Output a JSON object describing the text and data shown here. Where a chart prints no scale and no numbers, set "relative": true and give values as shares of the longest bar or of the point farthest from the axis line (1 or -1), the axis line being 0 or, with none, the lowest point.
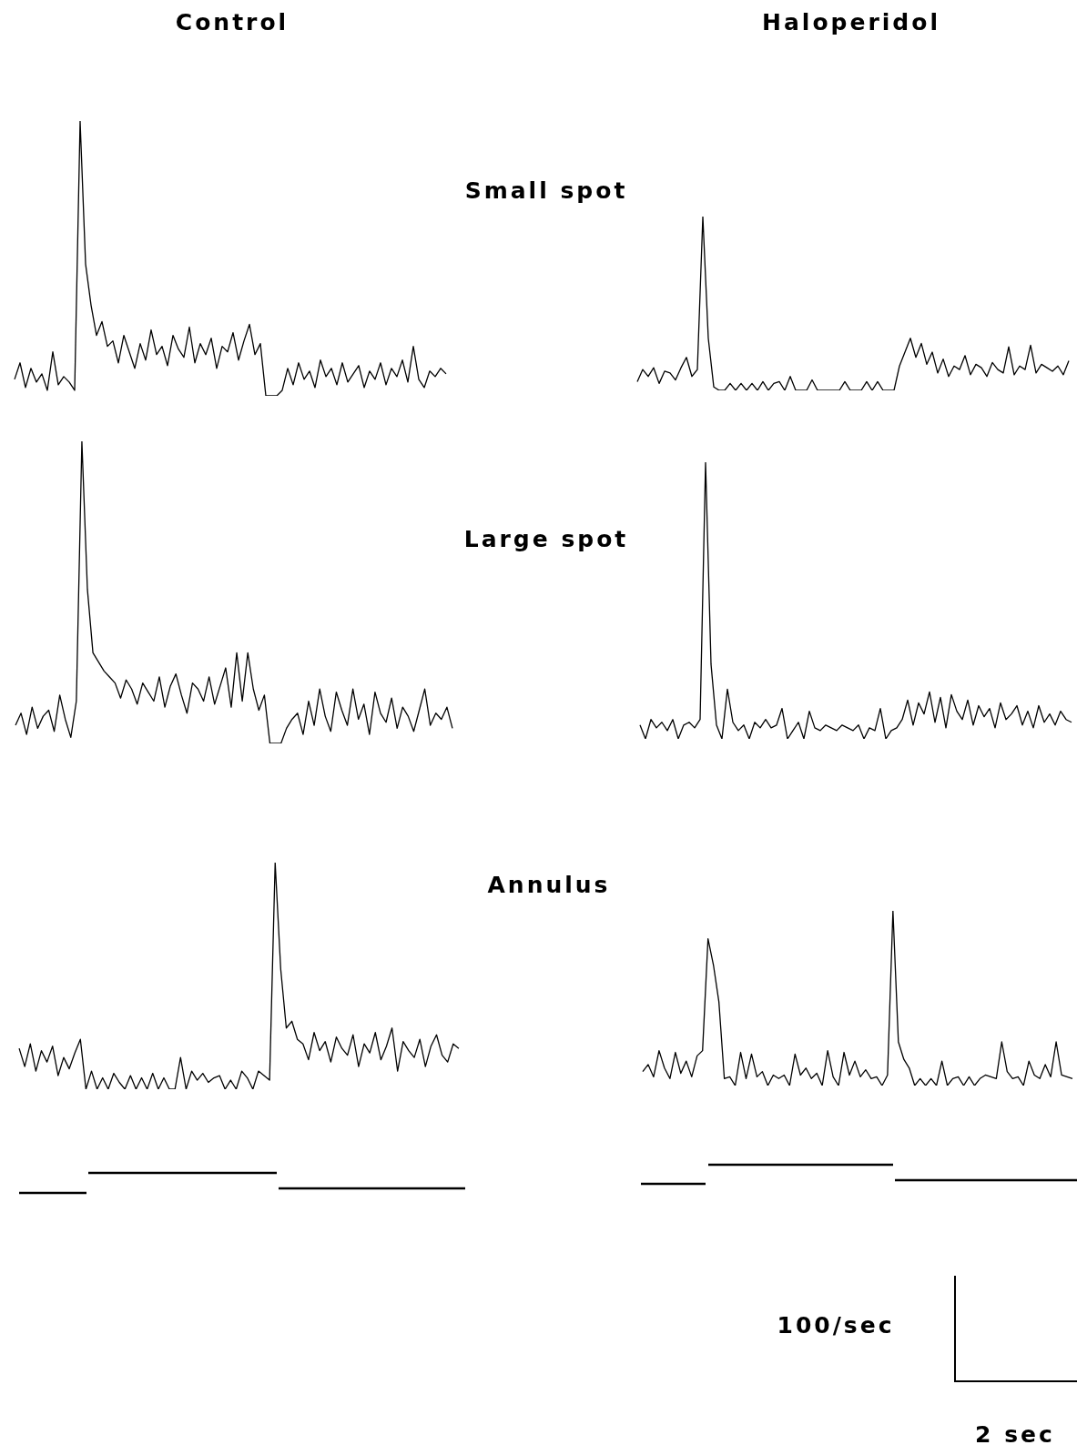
{
  "chart_data": [
    {
      "type": "line",
      "title": "Control",
      "annotations": [
        "Small spot"
      ],
      "relative": true,
      "color": "#000000",
      "categories": [
        null,
        null,
        null,
        null,
        null,
        null,
        null,
        null,
        null,
        null,
        null,
        null,
        null,
        null,
        null,
        null,
        null,
        null,
        null,
        null,
        null,
        null,
        null,
        null,
        null,
        null,
        null,
        null,
        null,
        null,
        null,
        null,
        null,
        null,
        null,
        null,
        null,
        null,
        null,
        null,
        null,
        null,
        null,
        null,
        null,
        null,
        null,
        null,
        null,
        null,
        null,
        null,
        null,
        null,
        null,
        null,
        null,
        null,
        null,
        null,
        null,
        null,
        null,
        null,
        null,
        null,
        null,
        null,
        null,
        null,
        null,
        null,
        null,
        null,
        null,
        null,
        null,
        null,
        null,
        null
      ],
      "values": [
        0.06,
        0.12,
        0.03,
        0.1,
        0.05,
        0.08,
        0.02,
        0.16,
        0.04,
        0.07,
        0.05,
        0.02,
        1.0,
        0.48,
        0.33,
        0.22,
        0.27,
        0.18,
        0.2,
        0.12,
        0.22,
        0.16,
        0.1,
        0.19,
        0.13,
        0.24,
        0.15,
        0.18,
        0.11,
        0.22,
        0.17,
        0.14,
        0.25,
        0.12,
        0.19,
        0.15,
        0.21,
        0.1,
        0.18,
        0.16,
        0.23,
        0.13,
        0.2,
        0.26,
        0.15,
        0.19,
        0,
        0,
        0,
        0.02,
        0.1,
        0.04,
        0.12,
        0.06,
        0.09,
        0.03,
        0.13,
        0.07,
        0.1,
        0.04,
        0.12,
        0.05,
        0.08,
        0.11,
        0.03,
        0.09,
        0.06,
        0.12,
        0.04,
        0.1,
        0.07,
        0.13,
        0.05,
        0.18,
        0.06,
        0.03,
        0.09,
        0.07,
        0.1,
        0.08
      ]
    },
    {
      "type": "line",
      "title": "Haloperidol",
      "relative": true,
      "color": "#000000",
      "categories": [
        null,
        null,
        null,
        null,
        null,
        null,
        null,
        null,
        null,
        null,
        null,
        null,
        null,
        null,
        null,
        null,
        null,
        null,
        null,
        null,
        null,
        null,
        null,
        null,
        null,
        null,
        null,
        null,
        null,
        null,
        null,
        null,
        null,
        null,
        null,
        null,
        null,
        null,
        null,
        null,
        null,
        null,
        null,
        null,
        null,
        null,
        null,
        null,
        null,
        null,
        null,
        null,
        null,
        null,
        null,
        null,
        null,
        null,
        null,
        null,
        null,
        null,
        null,
        null,
        null,
        null,
        null,
        null,
        null,
        null,
        null,
        null,
        null,
        null,
        null,
        null,
        null,
        null,
        null,
        null
      ],
      "values": [
        0.05,
        0.12,
        0.08,
        0.13,
        0.04,
        0.11,
        0.1,
        0.06,
        0.13,
        0.19,
        0.08,
        0.12,
        1.0,
        0.3,
        0.02,
        0,
        0,
        0.04,
        0,
        0.04,
        0,
        0.04,
        0,
        0.05,
        0,
        0.04,
        0.05,
        0,
        0.08,
        0,
        0,
        0,
        0.06,
        0,
        0,
        0,
        0,
        0,
        0.05,
        0,
        0,
        0,
        0.05,
        0,
        0.05,
        0,
        0,
        0,
        0.14,
        0.22,
        0.3,
        0.19,
        0.27,
        0.15,
        0.22,
        0.1,
        0.18,
        0.08,
        0.14,
        0.12,
        0.2,
        0.09,
        0.15,
        0.13,
        0.08,
        0.16,
        0.12,
        0.1,
        0.25,
        0.09,
        0.14,
        0.12,
        0.26,
        0.1,
        0.15,
        0.13,
        0.11,
        0.14,
        0.09,
        0.17
      ]
    },
    {
      "type": "line",
      "annotations": [
        "Large spot"
      ],
      "relative": true,
      "color": "#000000",
      "categories": [
        null,
        null,
        null,
        null,
        null,
        null,
        null,
        null,
        null,
        null,
        null,
        null,
        null,
        null,
        null,
        null,
        null,
        null,
        null,
        null,
        null,
        null,
        null,
        null,
        null,
        null,
        null,
        null,
        null,
        null,
        null,
        null,
        null,
        null,
        null,
        null,
        null,
        null,
        null,
        null,
        null,
        null,
        null,
        null,
        null,
        null,
        null,
        null,
        null,
        null,
        null,
        null,
        null,
        null,
        null,
        null,
        null,
        null,
        null,
        null,
        null,
        null,
        null,
        null,
        null,
        null,
        null,
        null,
        null,
        null,
        null,
        null,
        null,
        null,
        null,
        null,
        null,
        null,
        null,
        null
      ],
      "values": [
        0.06,
        0.1,
        0.03,
        0.12,
        0.05,
        0.09,
        0.11,
        0.04,
        0.16,
        0.08,
        0.02,
        0.14,
        1.0,
        0.51,
        0.3,
        0.27,
        0.24,
        0.22,
        0.2,
        0.15,
        0.21,
        0.18,
        0.13,
        0.2,
        0.17,
        0.14,
        0.22,
        0.12,
        0.19,
        0.23,
        0.16,
        0.1,
        0.2,
        0.18,
        0.14,
        0.22,
        0.13,
        0.19,
        0.25,
        0.12,
        0.3,
        0.14,
        0.3,
        0.18,
        0.11,
        0.16,
        0,
        0,
        0,
        0.05,
        0.08,
        0.1,
        0.03,
        0.14,
        0.06,
        0.18,
        0.09,
        0.04,
        0.17,
        0.11,
        0.06,
        0.18,
        0.08,
        0.13,
        0.03,
        0.17,
        0.1,
        0.07,
        0.15,
        0.05,
        0.12,
        0.09,
        0.04,
        0.11,
        0.18,
        0.06,
        0.1,
        0.08,
        0.12,
        0.05
      ]
    },
    {
      "type": "line",
      "relative": true,
      "color": "#000000",
      "categories": [
        null,
        null,
        null,
        null,
        null,
        null,
        null,
        null,
        null,
        null,
        null,
        null,
        null,
        null,
        null,
        null,
        null,
        null,
        null,
        null,
        null,
        null,
        null,
        null,
        null,
        null,
        null,
        null,
        null,
        null,
        null,
        null,
        null,
        null,
        null,
        null,
        null,
        null,
        null,
        null,
        null,
        null,
        null,
        null,
        null,
        null,
        null,
        null,
        null,
        null,
        null,
        null,
        null,
        null,
        null,
        null,
        null,
        null,
        null,
        null,
        null,
        null,
        null,
        null,
        null,
        null,
        null,
        null,
        null,
        null,
        null,
        null,
        null,
        null,
        null,
        null,
        null,
        null,
        null,
        null
      ],
      "values": [
        0.05,
        0,
        0.07,
        0.04,
        0.06,
        0.03,
        0.07,
        0,
        0.05,
        0.06,
        0.04,
        0.07,
        1.0,
        0.27,
        0.05,
        0,
        0.18,
        0.06,
        0.03,
        0.05,
        0,
        0.06,
        0.04,
        0.07,
        0.04,
        0.05,
        0.11,
        0,
        0.03,
        0.06,
        0,
        0.1,
        0.04,
        0.03,
        0.05,
        0.04,
        0.03,
        0.05,
        0.04,
        0.03,
        0.05,
        0,
        0.04,
        0.03,
        0.11,
        0,
        0.03,
        0.04,
        0.07,
        0.14,
        0.05,
        0.13,
        0.09,
        0.17,
        0.06,
        0.15,
        0.04,
        0.16,
        0.1,
        0.07,
        0.14,
        0.05,
        0.12,
        0.08,
        0.11,
        0.04,
        0.13,
        0.07,
        0.09,
        0.12,
        0.05,
        0.1,
        0.04,
        0.12,
        0.06,
        0.09,
        0.05,
        0.1,
        0.07,
        0.06
      ]
    },
    {
      "type": "line",
      "annotations": [
        "Annulus"
      ],
      "relative": true,
      "color": "#000000",
      "categories": [
        null,
        null,
        null,
        null,
        null,
        null,
        null,
        null,
        null,
        null,
        null,
        null,
        null,
        null,
        null,
        null,
        null,
        null,
        null,
        null,
        null,
        null,
        null,
        null,
        null,
        null,
        null,
        null,
        null,
        null,
        null,
        null,
        null,
        null,
        null,
        null,
        null,
        null,
        null,
        null,
        null,
        null,
        null,
        null,
        null,
        null,
        null,
        null,
        null,
        null,
        null,
        null,
        null,
        null,
        null,
        null,
        null,
        null,
        null,
        null,
        null,
        null,
        null,
        null,
        null,
        null,
        null,
        null,
        null,
        null,
        null,
        null,
        null,
        null,
        null,
        null,
        null,
        null,
        null,
        null
      ],
      "values": [
        0.18,
        0.1,
        0.2,
        0.08,
        0.17,
        0.12,
        0.19,
        0.06,
        0.14,
        0.09,
        0.16,
        0.22,
        0,
        0.08,
        0,
        0.05,
        0,
        0.07,
        0.03,
        0,
        0.06,
        0,
        0.05,
        0,
        0.07,
        0,
        0.05,
        0,
        0,
        0.14,
        0,
        0.08,
        0.04,
        0.07,
        0.03,
        0.05,
        0.06,
        0,
        0.04,
        0,
        0.08,
        0.05,
        0,
        0.08,
        0.06,
        0.04,
        1.0,
        0.53,
        0.27,
        0.3,
        0.22,
        0.2,
        0.13,
        0.25,
        0.17,
        0.21,
        0.12,
        0.23,
        0.18,
        0.15,
        0.24,
        0.1,
        0.2,
        0.16,
        0.25,
        0.13,
        0.19,
        0.27,
        0.08,
        0.21,
        0.17,
        0.14,
        0.22,
        0.1,
        0.19,
        0.24,
        0.15,
        0.12,
        0.2,
        0.18
      ]
    },
    {
      "type": "line",
      "annotations": [
        "100/sec",
        "2 sec"
      ],
      "relative": true,
      "color": "#000000",
      "categories": [
        null,
        null,
        null,
        null,
        null,
        null,
        null,
        null,
        null,
        null,
        null,
        null,
        null,
        null,
        null,
        null,
        null,
        null,
        null,
        null,
        null,
        null,
        null,
        null,
        null,
        null,
        null,
        null,
        null,
        null,
        null,
        null,
        null,
        null,
        null,
        null,
        null,
        null,
        null,
        null,
        null,
        null,
        null,
        null,
        null,
        null,
        null,
        null,
        null,
        null,
        null,
        null,
        null,
        null,
        null,
        null,
        null,
        null,
        null,
        null,
        null,
        null,
        null,
        null,
        null,
        null,
        null,
        null,
        null,
        null,
        null,
        null,
        null,
        null,
        null,
        null,
        null,
        null,
        null,
        null
      ],
      "values": [
        0.08,
        0.12,
        0.05,
        0.2,
        0.1,
        0.04,
        0.19,
        0.07,
        0.14,
        0.05,
        0.17,
        0.2,
        0.84,
        0.69,
        0.48,
        0.04,
        0.05,
        0,
        0.19,
        0.04,
        0.18,
        0.05,
        0.08,
        0,
        0.06,
        0.04,
        0.06,
        0,
        0.18,
        0.06,
        0.1,
        0.04,
        0.07,
        0,
        0.2,
        0.05,
        0,
        0.19,
        0.06,
        0.14,
        0.05,
        0.09,
        0.04,
        0.05,
        0,
        0.06,
        1.0,
        0.25,
        0.15,
        0.1,
        0,
        0.04,
        0,
        0.04,
        0,
        0.14,
        0,
        0.04,
        0.05,
        0,
        0.05,
        0,
        0.04,
        0.06,
        0.05,
        0.04,
        0.25,
        0.08,
        0.04,
        0.05,
        0,
        0.14,
        0.06,
        0.04,
        0.12,
        0.05,
        0.25,
        0.06,
        0.05,
        0.04
      ]
    }
  ]
}
